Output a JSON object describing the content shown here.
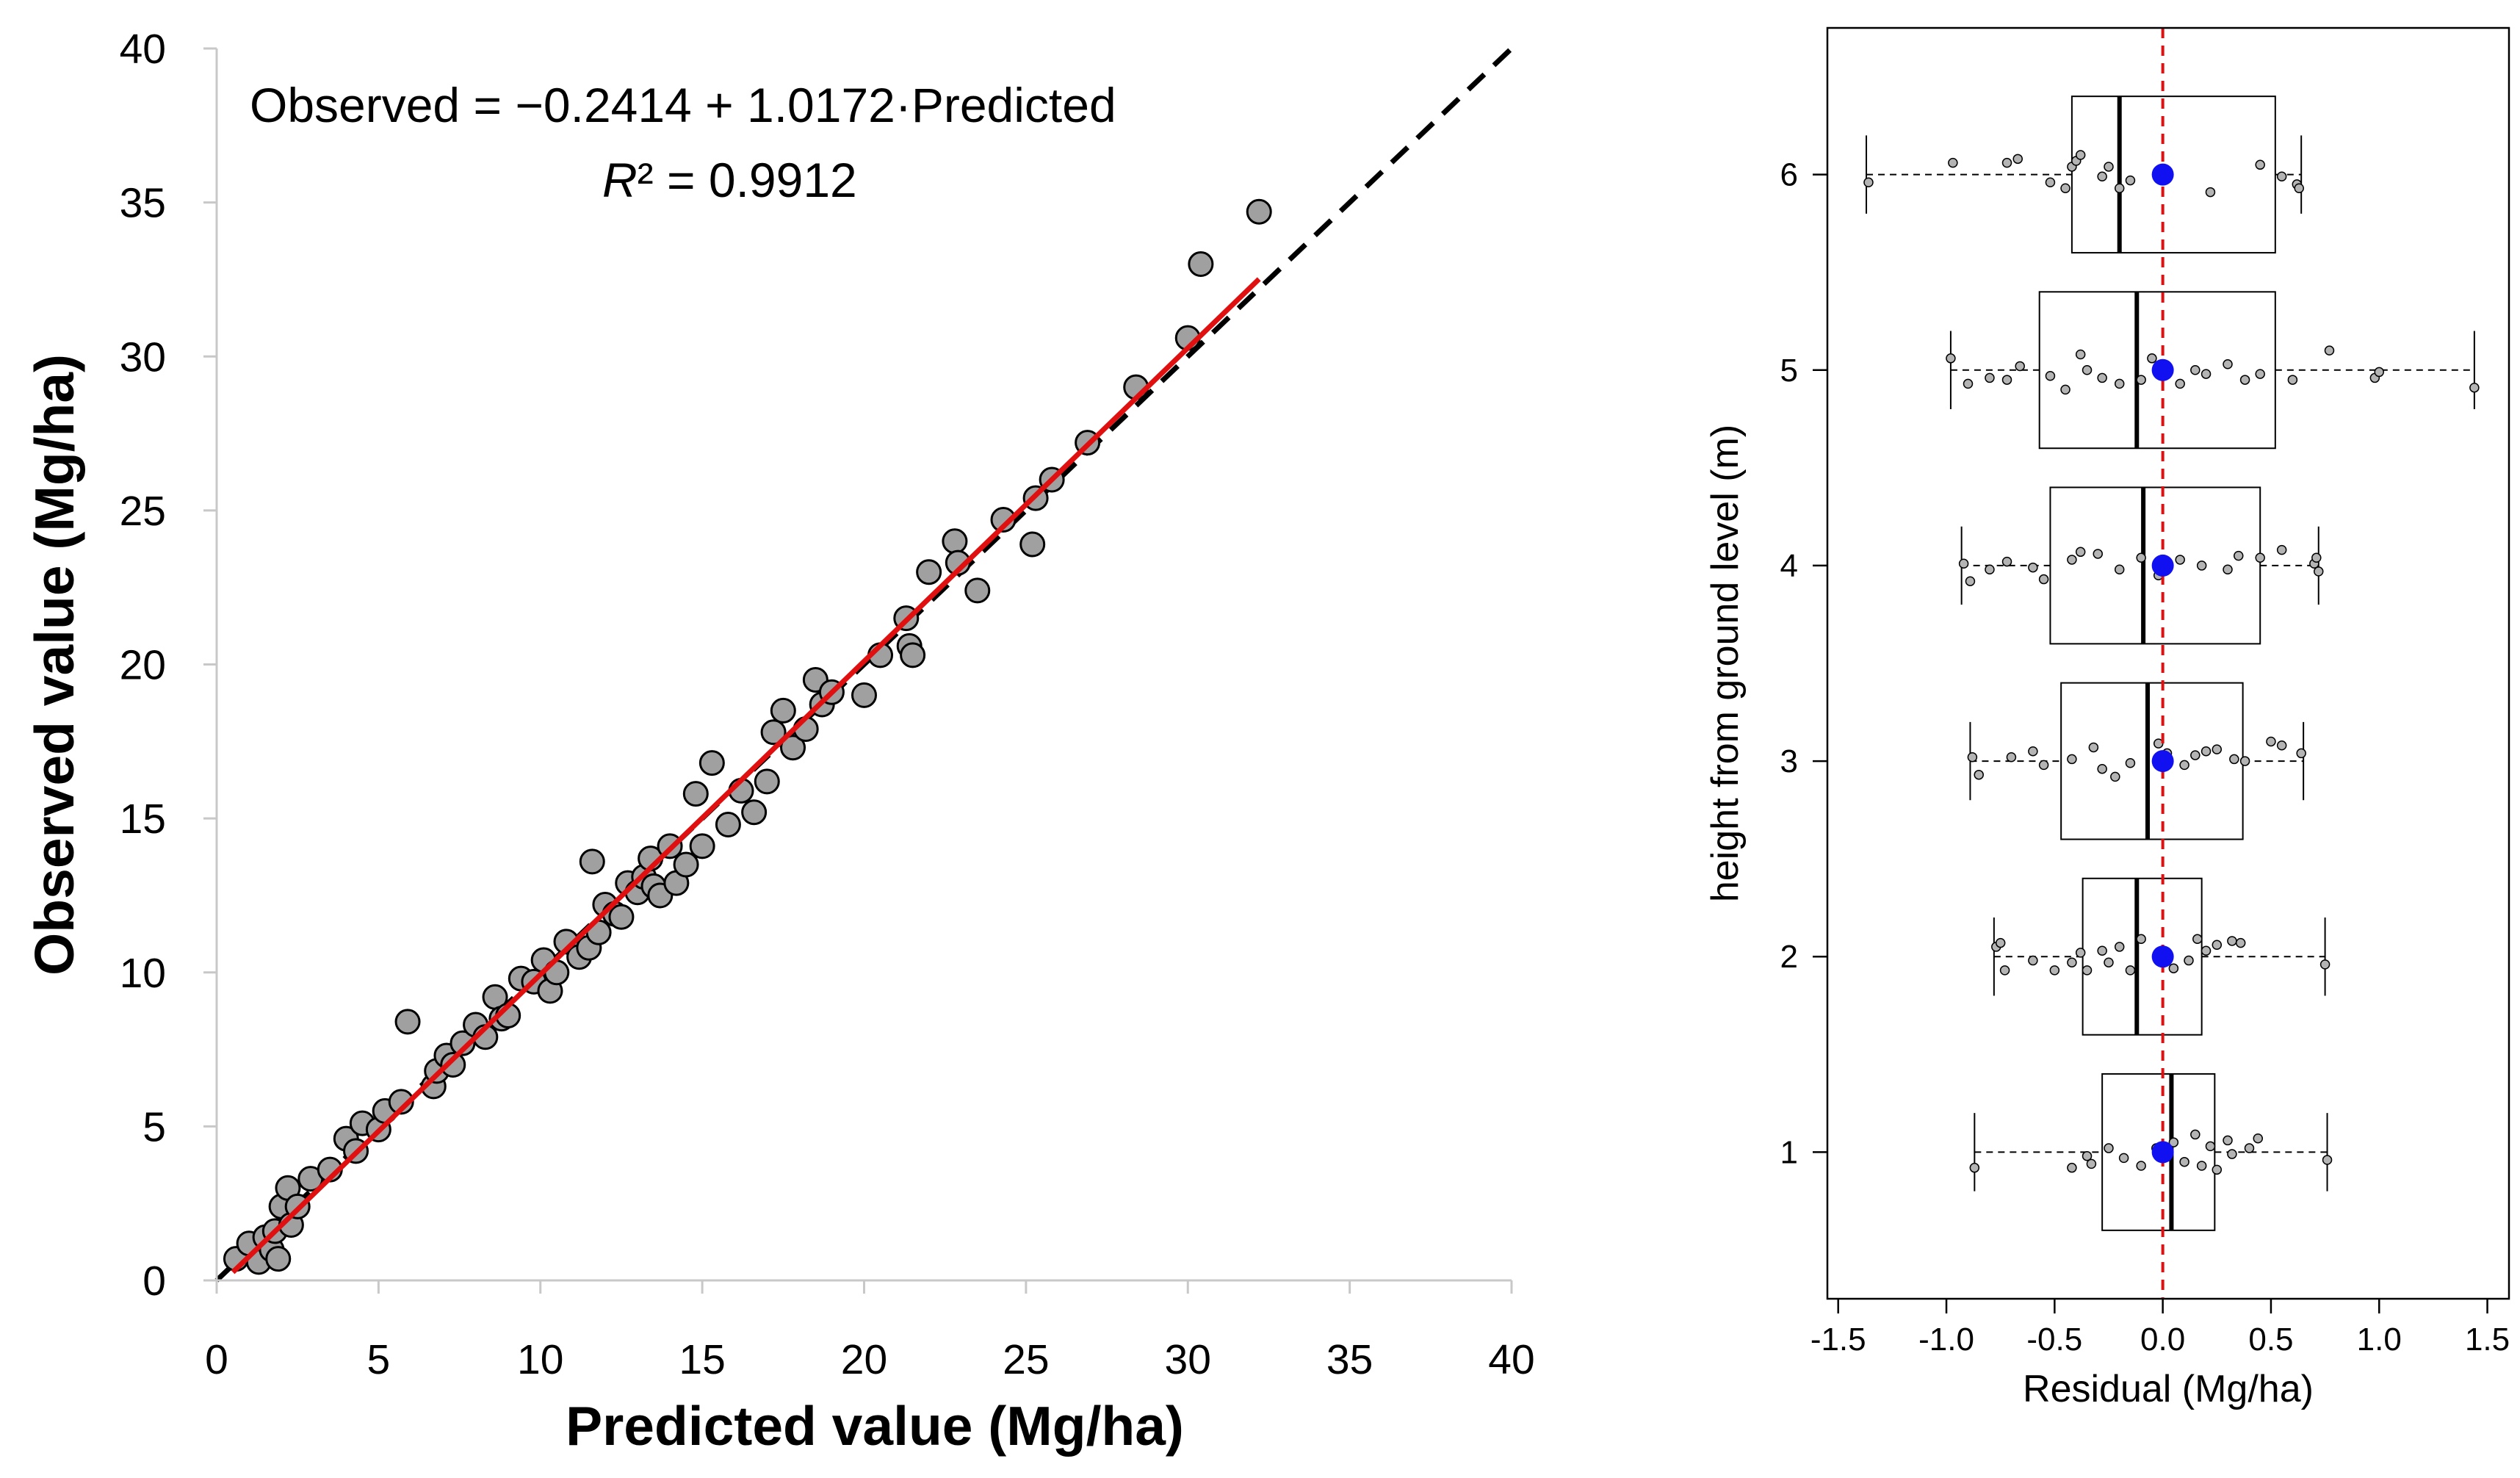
{
  "chart_data": [
    {
      "type": "scatter",
      "xlabel": "Predicted value (Mg/ha)",
      "ylabel": "Observed value (Mg/ha)",
      "xlim": [
        0,
        40
      ],
      "ylim": [
        0,
        40
      ],
      "xticks": [
        "0",
        "5",
        "10",
        "15",
        "20",
        "25",
        "30",
        "35",
        "40"
      ],
      "yticks": [
        "0",
        "5",
        "10",
        "15",
        "20",
        "25",
        "30",
        "35",
        "40"
      ],
      "equation": "Observed = −0.2414 + 1.0172·Predicted",
      "r2_label": "R² = 0.9912",
      "fit": {
        "intercept": -0.2414,
        "slope": 1.0172,
        "x_range": [
          0.5,
          32.2
        ],
        "color": "#e01010"
      },
      "identity_line": {
        "x_range": [
          0,
          40
        ],
        "style": "dashed",
        "color": "#000000"
      },
      "point_color": "#a0a0a0",
      "points": [
        [
          0.6,
          0.7
        ],
        [
          1.0,
          1.2
        ],
        [
          1.3,
          0.6
        ],
        [
          1.5,
          1.4
        ],
        [
          1.7,
          1.0
        ],
        [
          1.8,
          1.6
        ],
        [
          1.9,
          0.7
        ],
        [
          2.0,
          2.4
        ],
        [
          2.2,
          3.0
        ],
        [
          2.3,
          1.8
        ],
        [
          2.5,
          2.4
        ],
        [
          2.9,
          3.3
        ],
        [
          3.5,
          3.6
        ],
        [
          4.0,
          4.6
        ],
        [
          4.3,
          4.2
        ],
        [
          4.5,
          5.1
        ],
        [
          5.0,
          4.9
        ],
        [
          5.2,
          5.5
        ],
        [
          5.7,
          5.8
        ],
        [
          5.9,
          8.4
        ],
        [
          6.7,
          6.3
        ],
        [
          6.8,
          6.8
        ],
        [
          7.1,
          7.3
        ],
        [
          7.3,
          7.0
        ],
        [
          7.6,
          7.7
        ],
        [
          8.0,
          8.3
        ],
        [
          8.3,
          7.9
        ],
        [
          8.6,
          9.2
        ],
        [
          8.8,
          8.5
        ],
        [
          9.0,
          8.6
        ],
        [
          9.4,
          9.8
        ],
        [
          9.8,
          9.7
        ],
        [
          10.1,
          10.4
        ],
        [
          10.3,
          9.4
        ],
        [
          10.5,
          10.0
        ],
        [
          10.8,
          11.0
        ],
        [
          11.2,
          10.5
        ],
        [
          11.5,
          10.8
        ],
        [
          11.6,
          13.6
        ],
        [
          11.8,
          11.3
        ],
        [
          12.0,
          12.2
        ],
        [
          12.3,
          11.9
        ],
        [
          12.5,
          11.8
        ],
        [
          12.7,
          12.9
        ],
        [
          13.0,
          12.6
        ],
        [
          13.2,
          13.1
        ],
        [
          13.4,
          13.7
        ],
        [
          13.5,
          12.8
        ],
        [
          13.7,
          12.5
        ],
        [
          14.0,
          14.1
        ],
        [
          14.2,
          12.9
        ],
        [
          14.5,
          13.5
        ],
        [
          14.8,
          15.8
        ],
        [
          15.0,
          14.1
        ],
        [
          15.3,
          16.8
        ],
        [
          15.8,
          14.8
        ],
        [
          16.2,
          15.9
        ],
        [
          16.6,
          15.2
        ],
        [
          17.0,
          16.2
        ],
        [
          17.2,
          17.8
        ],
        [
          17.5,
          18.5
        ],
        [
          17.8,
          17.3
        ],
        [
          18.2,
          17.9
        ],
        [
          18.5,
          19.5
        ],
        [
          18.7,
          18.7
        ],
        [
          19.0,
          19.1
        ],
        [
          20.0,
          19.0
        ],
        [
          20.5,
          20.3
        ],
        [
          21.3,
          21.5
        ],
        [
          21.4,
          20.6
        ],
        [
          21.5,
          20.3
        ],
        [
          22.0,
          23.0
        ],
        [
          22.8,
          24.0
        ],
        [
          22.9,
          23.3
        ],
        [
          23.5,
          22.4
        ],
        [
          24.3,
          24.7
        ],
        [
          25.2,
          23.9
        ],
        [
          25.3,
          25.4
        ],
        [
          25.8,
          26.0
        ],
        [
          26.9,
          27.2
        ],
        [
          28.4,
          29.0
        ],
        [
          30.0,
          30.6
        ],
        [
          30.4,
          33.0
        ],
        [
          32.2,
          34.7
        ]
      ]
    },
    {
      "type": "box",
      "xlabel": "Residual (Mg/ha)",
      "ylabel": "height from ground level (m)",
      "xlim": [
        -1.55,
        1.6
      ],
      "ylim": [
        0.25,
        6.75
      ],
      "xticks": [
        "-1.5",
        "-1.0",
        "-0.5",
        "0.0",
        "0.5",
        "1.0",
        "1.5"
      ],
      "yticks": [
        "1",
        "2",
        "3",
        "4",
        "5",
        "6"
      ],
      "reference_line": {
        "x": 0.0,
        "style": "dashed",
        "color": "#e01010"
      },
      "mean_marker_color": "#1010f0",
      "groups": [
        {
          "height": 1,
          "min": -0.87,
          "q1": -0.28,
          "median": 0.04,
          "q3": 0.24,
          "max": 0.76,
          "mean": 0.0,
          "points": [
            [
              -0.87,
              0.92
            ],
            [
              -0.42,
              0.92
            ],
            [
              -0.35,
              0.98
            ],
            [
              -0.33,
              0.94
            ],
            [
              -0.25,
              1.02
            ],
            [
              -0.18,
              0.97
            ],
            [
              -0.1,
              0.93
            ],
            [
              -0.03,
              1.02
            ],
            [
              0.05,
              1.05
            ],
            [
              0.1,
              0.95
            ],
            [
              0.15,
              1.09
            ],
            [
              0.18,
              0.93
            ],
            [
              0.22,
              1.03
            ],
            [
              0.25,
              0.91
            ],
            [
              0.3,
              1.06
            ],
            [
              0.32,
              0.99
            ],
            [
              0.4,
              1.02
            ],
            [
              0.44,
              1.07
            ],
            [
              0.76,
              0.96
            ]
          ]
        },
        {
          "height": 2,
          "min": -0.78,
          "q1": -0.37,
          "median": -0.12,
          "q3": 0.18,
          "max": 0.75,
          "mean": 0.0,
          "points": [
            [
              -0.77,
              2.05
            ],
            [
              -0.75,
              2.07
            ],
            [
              -0.73,
              1.93
            ],
            [
              -0.6,
              1.98
            ],
            [
              -0.5,
              1.93
            ],
            [
              -0.42,
              1.97
            ],
            [
              -0.38,
              2.02
            ],
            [
              -0.35,
              1.93
            ],
            [
              -0.28,
              2.03
            ],
            [
              -0.25,
              1.97
            ],
            [
              -0.2,
              2.05
            ],
            [
              -0.15,
              1.93
            ],
            [
              -0.1,
              2.09
            ],
            [
              -0.02,
              2.01
            ],
            [
              0.05,
              1.94
            ],
            [
              0.12,
              1.98
            ],
            [
              0.16,
              2.09
            ],
            [
              0.2,
              2.03
            ],
            [
              0.25,
              2.06
            ],
            [
              0.32,
              2.08
            ],
            [
              0.36,
              2.07
            ],
            [
              0.75,
              1.96
            ]
          ]
        },
        {
          "height": 3,
          "min": -0.89,
          "q1": -0.47,
          "median": -0.07,
          "q3": 0.37,
          "max": 0.65,
          "mean": 0.0,
          "points": [
            [
              -0.88,
              3.02
            ],
            [
              -0.85,
              2.93
            ],
            [
              -0.7,
              3.02
            ],
            [
              -0.6,
              3.05
            ],
            [
              -0.55,
              2.98
            ],
            [
              -0.42,
              3.01
            ],
            [
              -0.32,
              3.07
            ],
            [
              -0.28,
              2.96
            ],
            [
              -0.22,
              2.92
            ],
            [
              -0.15,
              2.99
            ],
            [
              -0.02,
              3.09
            ],
            [
              0.02,
              3.04
            ],
            [
              0.1,
              2.98
            ],
            [
              0.15,
              3.03
            ],
            [
              0.2,
              3.05
            ],
            [
              0.25,
              3.06
            ],
            [
              0.33,
              3.01
            ],
            [
              0.38,
              3.0
            ],
            [
              0.5,
              3.1
            ],
            [
              0.55,
              3.08
            ],
            [
              0.64,
              3.04
            ]
          ]
        },
        {
          "height": 4,
          "min": -0.93,
          "q1": -0.52,
          "median": -0.09,
          "q3": 0.45,
          "max": 0.72,
          "mean": 0.0,
          "points": [
            [
              -0.92,
              4.01
            ],
            [
              -0.89,
              3.92
            ],
            [
              -0.8,
              3.98
            ],
            [
              -0.72,
              4.02
            ],
            [
              -0.6,
              3.99
            ],
            [
              -0.55,
              3.93
            ],
            [
              -0.42,
              4.03
            ],
            [
              -0.38,
              4.07
            ],
            [
              -0.3,
              4.06
            ],
            [
              -0.2,
              3.98
            ],
            [
              -0.1,
              4.04
            ],
            [
              -0.02,
              3.95
            ],
            [
              0.08,
              4.03
            ],
            [
              0.18,
              4.0
            ],
            [
              0.3,
              3.98
            ],
            [
              0.35,
              4.05
            ],
            [
              0.45,
              4.04
            ],
            [
              0.55,
              4.08
            ],
            [
              0.7,
              4.01
            ],
            [
              0.71,
              4.04
            ],
            [
              0.72,
              3.97
            ]
          ]
        },
        {
          "height": 5,
          "min": -0.98,
          "q1": -0.57,
          "median": -0.12,
          "q3": 0.52,
          "max": 1.44,
          "mean": 0.0,
          "points": [
            [
              -0.98,
              5.06
            ],
            [
              -0.9,
              4.93
            ],
            [
              -0.8,
              4.96
            ],
            [
              -0.72,
              4.95
            ],
            [
              -0.66,
              5.02
            ],
            [
              -0.52,
              4.97
            ],
            [
              -0.45,
              4.9
            ],
            [
              -0.38,
              5.08
            ],
            [
              -0.35,
              5.0
            ],
            [
              -0.28,
              4.96
            ],
            [
              -0.2,
              4.93
            ],
            [
              -0.1,
              4.95
            ],
            [
              -0.05,
              5.06
            ],
            [
              0.08,
              4.93
            ],
            [
              0.15,
              5.0
            ],
            [
              0.2,
              4.98
            ],
            [
              0.3,
              5.03
            ],
            [
              0.38,
              4.95
            ],
            [
              0.45,
              4.98
            ],
            [
              0.6,
              4.95
            ],
            [
              0.77,
              5.1
            ],
            [
              0.98,
              4.96
            ],
            [
              1.0,
              4.99
            ],
            [
              1.44,
              4.91
            ]
          ]
        },
        {
          "height": 6,
          "min": -1.37,
          "q1": -0.42,
          "median": -0.2,
          "q3": 0.52,
          "max": 0.64,
          "mean": 0.0,
          "points": [
            [
              -1.36,
              5.96
            ],
            [
              -0.97,
              6.06
            ],
            [
              -0.72,
              6.06
            ],
            [
              -0.67,
              6.08
            ],
            [
              -0.52,
              5.96
            ],
            [
              -0.45,
              5.93
            ],
            [
              -0.42,
              6.04
            ],
            [
              -0.4,
              6.07
            ],
            [
              -0.38,
              6.1
            ],
            [
              -0.28,
              5.99
            ],
            [
              -0.25,
              6.04
            ],
            [
              -0.2,
              5.93
            ],
            [
              -0.15,
              5.97
            ],
            [
              0.22,
              5.91
            ],
            [
              0.45,
              6.05
            ],
            [
              0.55,
              5.99
            ],
            [
              0.62,
              5.95
            ],
            [
              0.63,
              5.93
            ]
          ]
        }
      ]
    }
  ]
}
